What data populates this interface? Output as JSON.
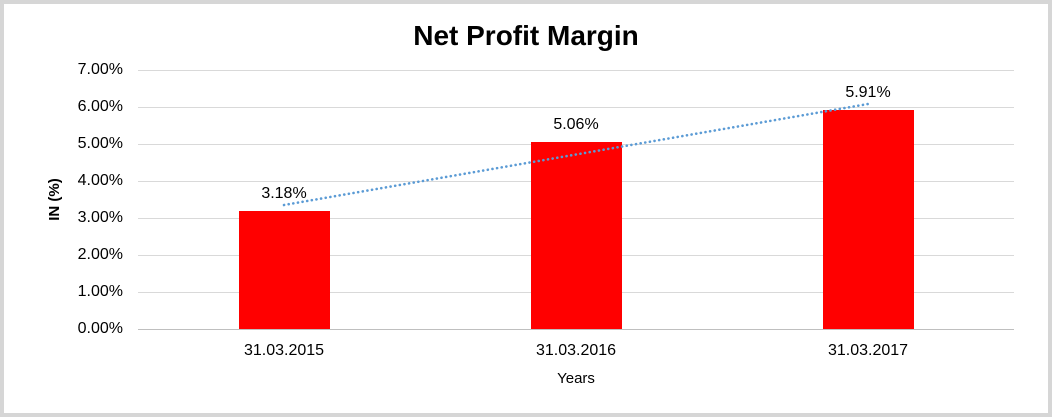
{
  "chart_data": {
    "type": "bar",
    "title": "Net Profit Margin",
    "categories": [
      "31.03.2015",
      "31.03.2016",
      "31.03.2017"
    ],
    "values": [
      3.18,
      5.06,
      5.91
    ],
    "data_labels": [
      "3.18%",
      "5.06%",
      "5.91%"
    ],
    "xlabel": "Years",
    "ylabel": "IN (%)",
    "ylim": [
      0,
      7
    ],
    "ytick_step": 1,
    "yticks": [
      "0.00%",
      "1.00%",
      "2.00%",
      "3.00%",
      "4.00%",
      "5.00%",
      "6.00%",
      "7.00%"
    ],
    "grid": true,
    "legend": "none",
    "colors": {
      "bar": "#ff0000",
      "trendline": "#5b9bd5",
      "gridline": "#d9d9d9",
      "text": "#000000",
      "chart_border": "#d6d6d6"
    },
    "trendline": {
      "type": "linear",
      "style": "dotted"
    }
  }
}
